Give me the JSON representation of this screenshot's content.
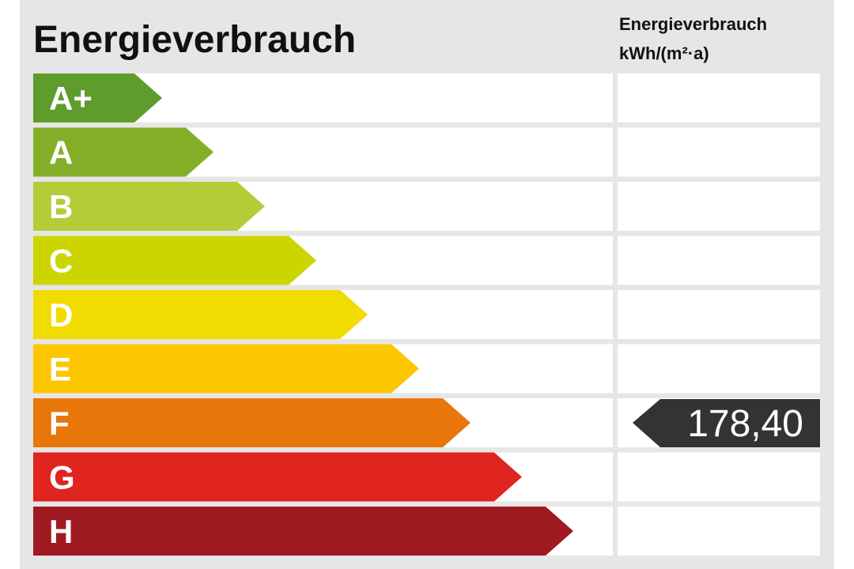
{
  "title": "Energieverbrauch",
  "column_header": [
    "Energieverbrauch",
    "kWh/(m²·a)"
  ],
  "classes": [
    {
      "label": "A+",
      "color": "#5e9c2c"
    },
    {
      "label": "A",
      "color": "#85ae28"
    },
    {
      "label": "B",
      "color": "#b5cc38"
    },
    {
      "label": "C",
      "color": "#ccd500"
    },
    {
      "label": "D",
      "color": "#f0dc00"
    },
    {
      "label": "E",
      "color": "#fcc700"
    },
    {
      "label": "F",
      "color": "#e9760a",
      "value": "178,40",
      "value_color": "#333333"
    },
    {
      "label": "G",
      "color": "#e02420"
    },
    {
      "label": "H",
      "color": "#a01a22"
    }
  ]
}
